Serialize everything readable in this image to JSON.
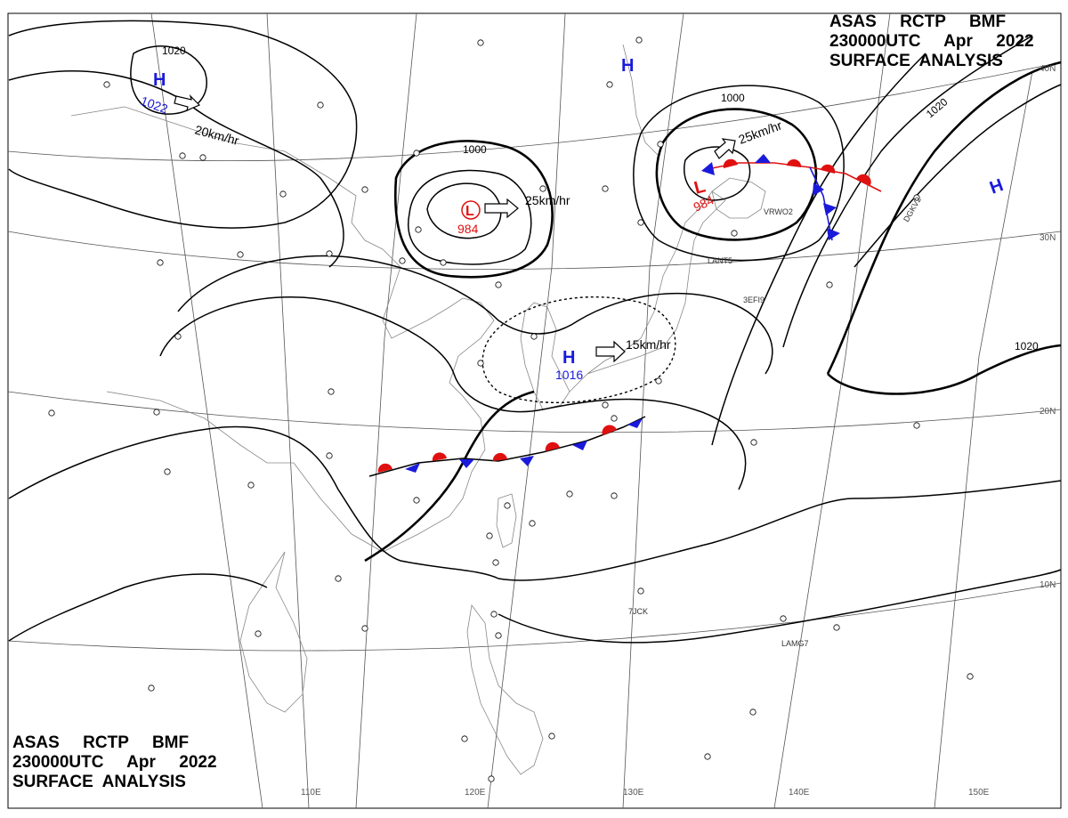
{
  "header": {
    "line1": "ASAS     RCTP     BMF",
    "line2": "230000UTC     Apr     2022",
    "line3": "SURFACE  ANALYSIS"
  },
  "footer": {
    "line1": "ASAS     RCTP     BMF",
    "line2": "230000UTC     Apr     2022",
    "line3": "SURFACE  ANALYSIS"
  },
  "longitudes": [
    "110E",
    "120E",
    "130E",
    "140E",
    "150E"
  ],
  "latitudes": [
    "40N",
    "30N",
    "20N",
    "10N"
  ],
  "isobars": [
    "1020",
    "1000",
    "1000",
    "1020",
    "1020"
  ],
  "pressure_centers": [
    {
      "type": "H",
      "value": "1022",
      "color": "#1a1adb"
    },
    {
      "type": "L",
      "value": "984",
      "color": "#e01010"
    },
    {
      "type": "H",
      "value": "1016",
      "color": "#1a1adb"
    },
    {
      "type": "L",
      "value": "984",
      "color": "#e01010"
    },
    {
      "type": "H",
      "value": "",
      "color": "#1a1adb"
    },
    {
      "type": "H",
      "value": "",
      "color": "#1a1adb"
    }
  ],
  "motion_labels": [
    "20km/hr",
    "25km/hr",
    "15km/hr",
    "25km/hr"
  ],
  "station_codes": [
    "LANT5",
    "VRWO2",
    "LAMG7",
    "7JCK",
    "DGKV2",
    "3EFI9"
  ],
  "colors": {
    "warm_front": "#e01010",
    "cold_front": "#1a1adb",
    "isobar": "#000000"
  }
}
